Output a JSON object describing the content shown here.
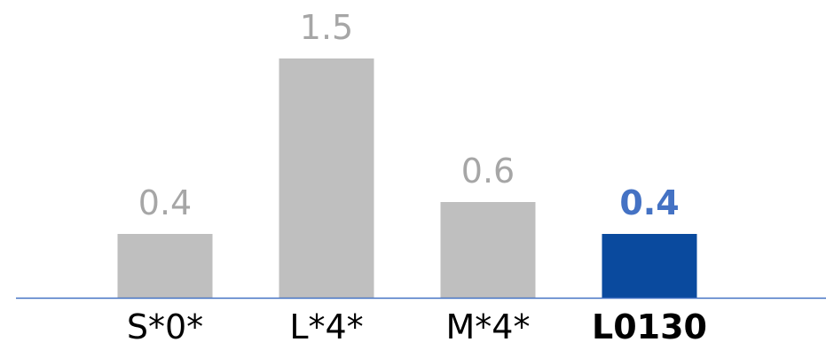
{
  "chart_data": {
    "type": "bar",
    "categories": [
      "S*0*",
      "L*4*",
      "M*4*",
      "L0130"
    ],
    "values": [
      0.4,
      1.5,
      0.6,
      0.4
    ],
    "value_labels": [
      "0.4",
      "1.5",
      "0.6",
      "0.4"
    ],
    "highlight_index": 3,
    "title": "",
    "xlabel": "",
    "ylabel": "",
    "ylim": [
      0,
      1.5
    ],
    "grid": false,
    "legend": "none"
  },
  "colors": {
    "bar_default": "#bfbfbf",
    "bar_highlight": "#0a4a9e",
    "label_default": "#a6a6a6",
    "label_highlight": "#4472c4",
    "axis_line": "#4472c4",
    "category_text": "#000000"
  }
}
